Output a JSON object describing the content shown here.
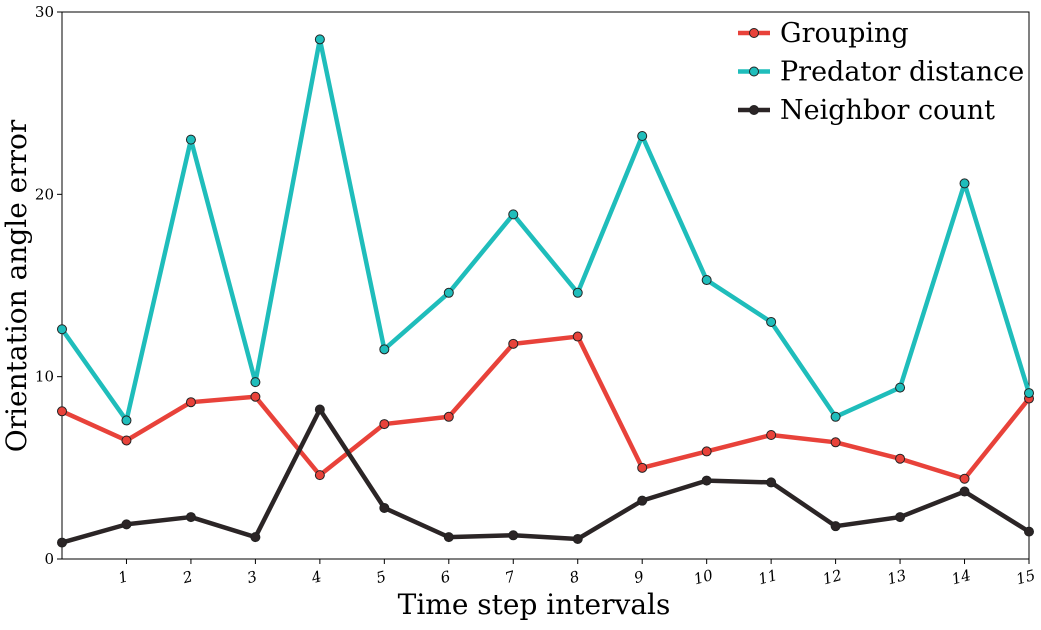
{
  "chart_data": {
    "type": "line",
    "title": "",
    "xlabel": "Time step intervals",
    "ylabel": "Orientation angle error",
    "x": [
      0,
      1,
      2,
      3,
      4,
      5,
      6,
      7,
      8,
      9,
      10,
      11,
      12,
      13,
      14,
      15
    ],
    "xticks": [
      "1",
      "2",
      "3",
      "4",
      "5",
      "6",
      "7",
      "8",
      "9",
      "10",
      "11",
      "12",
      "13",
      "14",
      "15"
    ],
    "yticks": [
      "0",
      "10",
      "20",
      "30"
    ],
    "xlim": [
      0,
      15
    ],
    "ylim": [
      0,
      30
    ],
    "grid": false,
    "legend_position": "top-right",
    "series": [
      {
        "name": "Grouping",
        "color": "#e8423a",
        "values": [
          8.1,
          6.5,
          8.6,
          8.9,
          4.6,
          7.4,
          7.8,
          11.8,
          12.2,
          5.0,
          5.9,
          6.8,
          6.4,
          5.5,
          4.4,
          8.8
        ]
      },
      {
        "name": "Predator distance",
        "color": "#1fbdbb",
        "values": [
          12.6,
          7.6,
          23.0,
          9.7,
          28.5,
          11.5,
          14.6,
          18.9,
          14.6,
          23.2,
          15.3,
          13.0,
          7.8,
          9.4,
          20.6,
          9.1
        ]
      },
      {
        "name": "Neighbor count",
        "color": "#2b2526",
        "values": [
          0.9,
          1.9,
          2.3,
          1.2,
          8.2,
          2.8,
          1.2,
          1.3,
          1.1,
          3.2,
          4.3,
          4.2,
          1.8,
          2.3,
          3.7,
          1.5
        ]
      }
    ]
  }
}
